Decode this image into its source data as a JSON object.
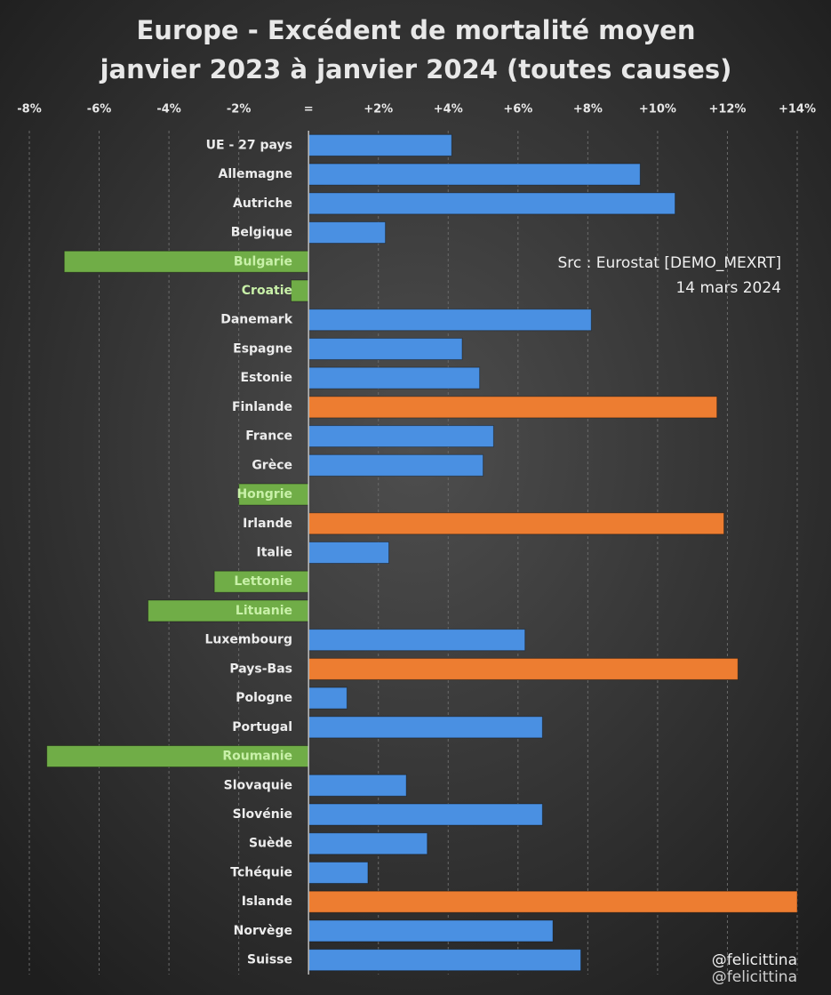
{
  "chart_data": {
    "type": "hbar",
    "title": "Europe - Excédent de mortalité moyen",
    "subtitle": "janvier 2023 à janvier 2024 (toutes causes)",
    "annotations": [
      "Src : Eurostat [DEMO_MEXRT]",
      "14 mars 2024",
      "@felicittina"
    ],
    "categories": [
      "UE - 27 pays",
      "Allemagne",
      "Autriche",
      "Belgique",
      "Bulgarie",
      "Croatie",
      "Danemark",
      "Espagne",
      "Estonie",
      "Finlande",
      "France",
      "Grèce",
      "Hongrie",
      "Irlande",
      "Italie",
      "Lettonie",
      "Lituanie",
      "Luxembourg",
      "Pays-Bas",
      "Pologne",
      "Portugal",
      "Roumanie",
      "Slovaquie",
      "Slovénie",
      "Suède",
      "Tchéquie",
      "Islande",
      "Norvège",
      "Suisse"
    ],
    "values": [
      4.1,
      9.5,
      10.5,
      2.2,
      -7.0,
      -0.5,
      8.1,
      4.4,
      4.9,
      11.7,
      5.3,
      5.0,
      -2.0,
      11.9,
      2.3,
      -2.7,
      -4.6,
      6.2,
      12.3,
      1.1,
      6.7,
      -7.5,
      2.8,
      6.7,
      3.4,
      1.7,
      14.0,
      7.0,
      7.8
    ],
    "colors": [
      "#4a90e2",
      "#4a90e2",
      "#4a90e2",
      "#4a90e2",
      "#70ad47",
      "#70ad47",
      "#4a90e2",
      "#4a90e2",
      "#4a90e2",
      "#ed7d31",
      "#4a90e2",
      "#4a90e2",
      "#70ad47",
      "#ed7d31",
      "#4a90e2",
      "#70ad47",
      "#70ad47",
      "#4a90e2",
      "#ed7d31",
      "#4a90e2",
      "#4a90e2",
      "#70ad47",
      "#4a90e2",
      "#4a90e2",
      "#4a90e2",
      "#4a90e2",
      "#ed7d31",
      "#4a90e2",
      "#4a90e2"
    ],
    "xlim": [
      -8,
      14
    ],
    "xticks": [
      {
        "value": -8,
        "label": "-8%"
      },
      {
        "value": -6,
        "label": "-6%"
      },
      {
        "value": -4,
        "label": "-4%"
      },
      {
        "value": -2,
        "label": "-2%"
      },
      {
        "value": 0,
        "label": "="
      },
      {
        "value": 2,
        "label": "+2%"
      },
      {
        "value": 4,
        "label": "+4%"
      },
      {
        "value": 6,
        "label": "+6%"
      },
      {
        "value": 8,
        "label": "+8%"
      },
      {
        "value": 10,
        "label": "+10%"
      },
      {
        "value": 12,
        "label": "+12%"
      },
      {
        "value": 14,
        "label": "+14%"
      }
    ],
    "grid": true
  }
}
